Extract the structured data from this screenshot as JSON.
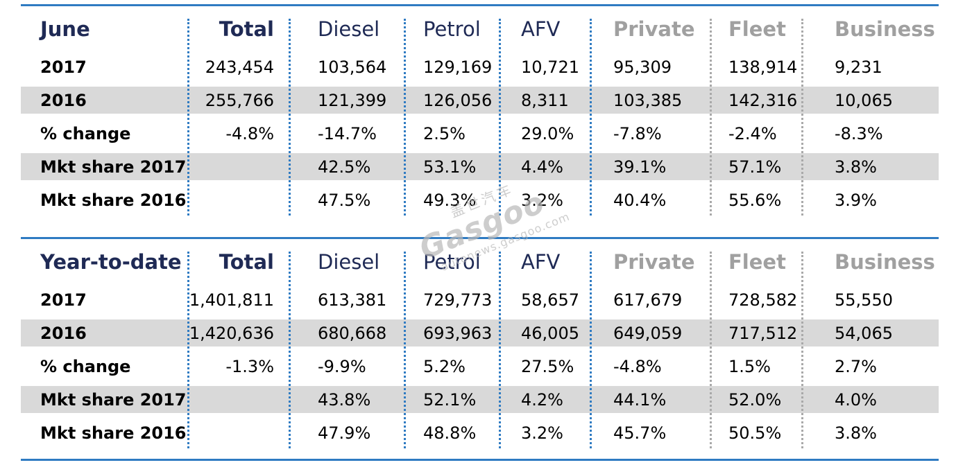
{
  "colors": {
    "rule": "#2f7bc2",
    "header_dark": "#1f2a55",
    "header_grey": "#a0a0a0",
    "row_shade": "#d9d9d9"
  },
  "watermark": {
    "brand": "Gasgoo",
    "chinese": "盖世汽车",
    "url": "autonews.gasgoo.com"
  },
  "tables": [
    {
      "header": [
        "June",
        "Total",
        "Diesel",
        "Petrol",
        "AFV",
        "Private",
        "Fleet",
        "Business"
      ],
      "rows": [
        [
          "2017",
          "243,454",
          "103,564",
          "129,169",
          "10,721",
          "95,309",
          "138,914",
          "9,231"
        ],
        [
          "2016",
          "255,766",
          "121,399",
          "126,056",
          "8,311",
          "103,385",
          "142,316",
          "10,065"
        ],
        [
          "% change",
          "-4.8%",
          "-14.7%",
          "2.5%",
          "29.0%",
          "-7.8%",
          "-2.4%",
          "-8.3%"
        ],
        [
          "Mkt share 2017",
          "",
          "42.5%",
          "53.1%",
          "4.4%",
          "39.1%",
          "57.1%",
          "3.8%"
        ],
        [
          "Mkt share 2016",
          "",
          "47.5%",
          "49.3%",
          "3.2%",
          "40.4%",
          "55.6%",
          "3.9%"
        ]
      ]
    },
    {
      "header": [
        "Year-to-date",
        "Total",
        "Diesel",
        "Petrol",
        "AFV",
        "Private",
        "Fleet",
        "Business"
      ],
      "rows": [
        [
          "2017",
          "1,401,811",
          "613,381",
          "729,773",
          "58,657",
          "617,679",
          "728,582",
          "55,550"
        ],
        [
          "2016",
          "1,420,636",
          "680,668",
          "693,963",
          "46,005",
          "649,059",
          "717,512",
          "54,065"
        ],
        [
          "% change",
          "-1.3%",
          "-9.9%",
          "5.2%",
          "27.5%",
          "-4.8%",
          "1.5%",
          "2.7%"
        ],
        [
          "Mkt share 2017",
          "",
          "43.8%",
          "52.1%",
          "4.2%",
          "44.1%",
          "52.0%",
          "4.0%"
        ],
        [
          "Mkt share 2016",
          "",
          "47.9%",
          "48.8%",
          "3.2%",
          "45.7%",
          "50.5%",
          "3.8%"
        ]
      ]
    }
  ]
}
